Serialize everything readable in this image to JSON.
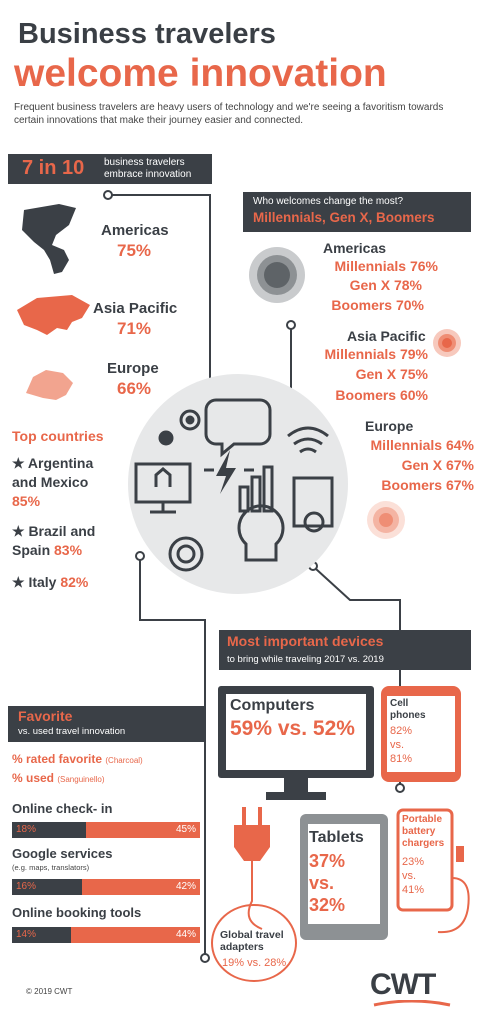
{
  "header": {
    "title_line1": "Business travelers",
    "title_line2": "welcome innovation",
    "intro": "Frequent business travelers are heavy users of technology and we're seeing a favoritism towards certain innovations that make their journey easier and connected."
  },
  "embrace": {
    "big": "7 in 10",
    "small_line1": "business travelers",
    "small_line2": "embrace innovation"
  },
  "regions": [
    {
      "name": "Americas",
      "pct": "75%"
    },
    {
      "name": "Asia Pacific",
      "pct": "71%"
    },
    {
      "name": "Europe",
      "pct": "66%"
    }
  ],
  "who": {
    "question": "Who welcomes change the most?",
    "groups": "Millennials, Gen X, Boomers",
    "americas": {
      "name": "Americas",
      "millennials": "Millennials 76%",
      "genx": "Gen X 78%",
      "boomers": "Boomers 70%"
    },
    "asia": {
      "name": "Asia Pacific",
      "millennials": "Millennials 79%",
      "genx": "Gen X 75%",
      "boomers": "Boomers 60%"
    },
    "europe": {
      "name": "Europe",
      "millennials": "Millennials 64%",
      "genx": "Gen X 67%",
      "boomers": "Boomers 67%"
    }
  },
  "top_countries": {
    "heading": "Top countries",
    "items": [
      {
        "line1": "★ Argentina",
        "line2": "and Mexico",
        "pct": "85%"
      },
      {
        "line1": "★ Brazil and",
        "line2": "Spain",
        "pct": "83%"
      },
      {
        "line1": "★ Italy",
        "line2": "",
        "pct": "82%"
      }
    ]
  },
  "devices": {
    "heading": "Most important devices",
    "sub": "to bring while traveling 2017 vs. 2019",
    "computers": {
      "label": "Computers",
      "value": "59% vs. 52%"
    },
    "cell": {
      "label1": "Cell",
      "label2": "phones",
      "v1": "82%",
      "vs": "vs.",
      "v2": "81%"
    },
    "tablets": {
      "label": "Tablets",
      "v1": "37%",
      "vs": "vs.",
      "v2": "32%"
    },
    "battery": {
      "label1": "Portable",
      "label2": "battery",
      "label3": "chargers",
      "v1": "23%",
      "vs": "vs.",
      "v2": "41%"
    },
    "adapters": {
      "label1": "Global travel",
      "label2": "adapters",
      "value": "19% vs. 28%"
    }
  },
  "favorite": {
    "heading": "Favorite",
    "sub": "vs. used travel innovation",
    "legend_rated": "% rated favorite",
    "legend_rated_note": "(Charcoal)",
    "legend_used": "% used",
    "legend_used_note": "(Sanguinello)",
    "colors": {
      "charcoal": "#3b4046",
      "sanguinello": "#e8674a"
    },
    "items": [
      {
        "label": "Online check- in",
        "sub": "",
        "favorite": 18,
        "used": 45,
        "favorite_label": "18%",
        "used_label": "45%"
      },
      {
        "label": "Google services",
        "sub": "(e.g. maps, translators)",
        "favorite": 16,
        "used": 42,
        "favorite_label": "16%",
        "used_label": "42%"
      },
      {
        "label": "Online booking tools",
        "sub": "",
        "favorite": 14,
        "used": 44,
        "favorite_label": "14%",
        "used_label": "44%"
      }
    ]
  },
  "footer": {
    "copyright": "© 2019 CWT",
    "logo": "CWT"
  }
}
